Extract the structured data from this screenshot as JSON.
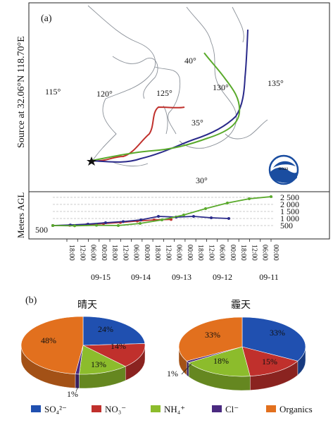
{
  "panel_a": {
    "label": "(a)",
    "side_title": "Source at 32.06°N 118.70°E",
    "map": {
      "lon_labels": [
        "115°",
        "120°",
        "125°",
        "130°",
        "135°"
      ],
      "lat_labels": [
        "40°",
        "35°",
        "30°"
      ],
      "logo_text": "noaa"
    },
    "altitude_axis": {
      "ylabel": "Meters AGL",
      "left_tick": "500",
      "right_ticks": [
        "2 500",
        "2 000",
        "1 500",
        "1 000",
        "500"
      ],
      "time_ticks": [
        "18:00",
        "12:00",
        "06:00",
        "00:00",
        "18:00",
        "12:00",
        "06:00",
        "00:00",
        "18:00",
        "12:00",
        "06:00",
        "00:00",
        "18:00",
        "12:00",
        "06:00",
        "00:00",
        "18:00",
        "12:00",
        "06:00",
        "00:00"
      ],
      "date_labels": [
        "09-15",
        "09-14",
        "09-13",
        "09-12",
        "09-11"
      ]
    }
  },
  "panel_b": {
    "label": "(b)",
    "legend": [
      {
        "label": "SO₄²⁻",
        "color": "#2050b0"
      },
      {
        "label": "NO₃⁻",
        "color": "#c0302c"
      },
      {
        "label": "NH₄⁺",
        "color": "#8cbc2c"
      },
      {
        "label": "Cl⁻",
        "color": "#4a2a80"
      },
      {
        "label": "Organics",
        "color": "#e2701e"
      }
    ]
  },
  "chart_data": [
    {
      "type": "line",
      "title": "",
      "ylabel": "Meters AGL",
      "ylim": [
        0,
        2500
      ],
      "x_labels": [
        "09-15",
        "09-14",
        "09-13",
        "09-12",
        "09-11"
      ],
      "series": [
        {
          "color": "#c0302c",
          "values": [
            500,
            520,
            560,
            640,
            720,
            820,
            900,
            930
          ]
        },
        {
          "color": "#2a2a8a",
          "values": [
            500,
            540,
            600,
            700,
            780,
            900,
            1150,
            1100,
            1150,
            1050,
            1000
          ]
        },
        {
          "color": "#5aaa2c",
          "values": [
            500,
            480,
            520,
            500,
            650,
            900,
            1250,
            1700,
            2100,
            2400,
            2550
          ]
        }
      ]
    },
    {
      "type": "pie",
      "title": "晴天",
      "categories": [
        "SO₄²⁻",
        "NO₃⁻",
        "NH₄⁺",
        "Cl⁻",
        "Organics"
      ],
      "values": [
        24,
        14,
        13,
        1,
        48
      ],
      "labels": [
        "24%",
        "14%",
        "13%",
        "1%",
        "48%"
      ]
    },
    {
      "type": "pie",
      "title": "霾天",
      "categories": [
        "SO₄²⁻",
        "NO₃⁻",
        "NH₄⁺",
        "Cl⁻",
        "Organics"
      ],
      "values": [
        33,
        15,
        18,
        1,
        33
      ],
      "labels": [
        "33%",
        "15%",
        "18%",
        "1%",
        "33%"
      ]
    }
  ]
}
